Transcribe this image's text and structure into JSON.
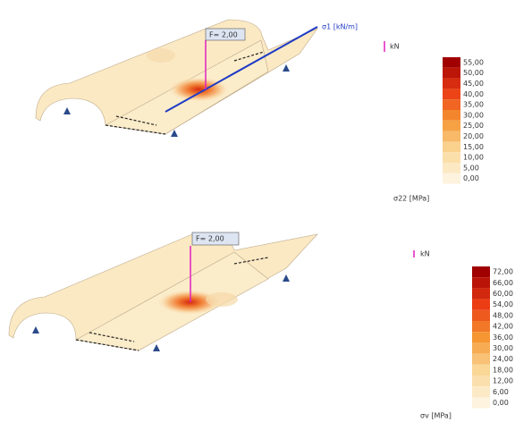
{
  "plots": [
    {
      "load_label": "F= 2,00",
      "line_label": "σ1 [kN/m]",
      "force_unit": "kN",
      "legend": {
        "labels": [
          "55,00",
          "50,00",
          "45,00",
          "40,00",
          "35,00",
          "30,00",
          "25,00",
          "20,00",
          "15,00",
          "10,00",
          "5,00",
          "0,00"
        ],
        "unit": "σ22 [MPa]"
      }
    },
    {
      "load_label": "F= 2,00",
      "force_unit": "kN",
      "legend": {
        "labels": [
          "72,00",
          "66,00",
          "60,00",
          "54,00",
          "48,00",
          "42,00",
          "36,00",
          "30,00",
          "24,00",
          "18,00",
          "12,00",
          "6,00",
          "0,00"
        ],
        "unit": "σv [MPa]"
      }
    }
  ]
}
